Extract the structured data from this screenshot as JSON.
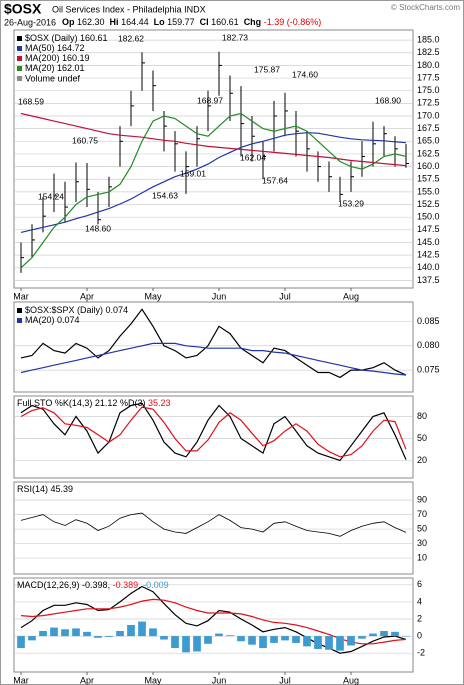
{
  "header": {
    "symbol": "$OSX",
    "name": "Oil Services Index - Philadelphia INDX",
    "date": "26-Aug-2016",
    "quote": [
      {
        "label": "Op",
        "value": "162.30"
      },
      {
        "label": "Hi",
        "value": "164.44"
      },
      {
        "label": "Lo",
        "value": "159.77"
      },
      {
        "label": "Cl",
        "value": "160.61"
      },
      {
        "label": "Chg",
        "value": "-1.39 (-0.86%)"
      }
    ],
    "watermark": "© StockCharts.com"
  },
  "chart_data": [
    {
      "type": "ohlc",
      "legend": "stack",
      "legend_note": "Volume undef",
      "categories": [
        "Mar",
        null,
        null,
        null,
        null,
        null,
        "Apr",
        null,
        null,
        null,
        null,
        null,
        "May",
        null,
        null,
        null,
        null,
        null,
        "Jun",
        null,
        null,
        null,
        null,
        null,
        "Jul",
        null,
        null,
        null,
        null,
        null,
        "Aug",
        null,
        null,
        null,
        null,
        null
      ],
      "ylim": [
        136,
        187
      ],
      "yticks": [
        137.5,
        {
          "value": 140,
          "label": "140.0"
        },
        142.5,
        {
          "value": 145,
          "label": "145.0"
        },
        147.5,
        {
          "value": 150,
          "label": "150.0"
        },
        152.5,
        {
          "value": 155,
          "label": "155.0"
        },
        157.5,
        {
          "value": 160,
          "label": "160.0"
        },
        162.5,
        {
          "value": 165,
          "label": "165.0"
        },
        167.5,
        {
          "value": 170,
          "label": "170.0"
        },
        172.5,
        {
          "value": 175,
          "label": "175.0"
        },
        177.5,
        {
          "value": 180,
          "label": "180.0"
        },
        182.5,
        {
          "value": 185,
          "label": "185.0"
        }
      ],
      "grid": true,
      "annotations": [
        "182.62",
        "182.73",
        "175.87",
        "174.60",
        "168.97",
        "168.90",
        "168.59",
        "160.75",
        "162.04",
        "159.01",
        "157.64",
        "154.24",
        "154.63",
        "153.29",
        "148.60"
      ],
      "series": [
        {
          "name": "$OSX (Daily)",
          "type": "ohlc",
          "color": "#000000",
          "high": [
            145,
            148.6,
            154,
            158.6,
            157,
            160.8,
            160.7,
            155,
            158,
            168,
            175,
            182.6,
            179,
            171,
            167,
            163,
            168,
            175,
            182.7,
            178,
            175.9,
            170,
            165,
            173,
            174.6,
            171,
            167,
            163,
            161,
            158,
            161,
            165,
            168.9,
            168,
            166,
            164.44
          ],
          "low": [
            139,
            142,
            147,
            151,
            149,
            153,
            152,
            148.6,
            152,
            160,
            168,
            175,
            171,
            163,
            159,
            154.6,
            160,
            167,
            174,
            169,
            162,
            161,
            157.6,
            163,
            166,
            162,
            159,
            157,
            155,
            153.3,
            155,
            158,
            160,
            162,
            160,
            159.77
          ],
          "values": [
            142,
            145.5,
            150.2,
            154.2,
            152,
            157,
            155.5,
            149.5,
            156,
            165,
            172,
            180.5,
            176,
            168,
            164.5,
            160,
            165.5,
            172,
            180,
            174.5,
            168.5,
            166,
            162,
            170,
            171,
            167,
            163.5,
            160,
            158,
            154.5,
            158,
            162,
            164.5,
            166.5,
            163.5,
            160.61
          ]
        },
        {
          "name": "MA(50)",
          "type": "line",
          "color": "#1f35a6",
          "values": [
            147,
            147.5,
            148,
            148.5,
            149,
            149.7,
            150.3,
            151,
            151.7,
            152.6,
            153.6,
            154.8,
            156,
            157,
            158,
            158.7,
            159.5,
            160.5,
            161.8,
            162.8,
            163.8,
            164.5,
            165,
            165.6,
            166.2,
            166.5,
            166.7,
            166.6,
            166.2,
            165.8,
            165.5,
            165.3,
            165.2,
            165.1,
            164.9,
            164.72
          ]
        },
        {
          "name": "MA(200)",
          "type": "line",
          "color": "#c0103a",
          "values": [
            170.5,
            170,
            169.5,
            169,
            168.5,
            168,
            167.5,
            167,
            166.5,
            166.2,
            166,
            165.8,
            165.5,
            165.2,
            165,
            164.6,
            164.3,
            164,
            163.8,
            163.6,
            163.4,
            163.2,
            163,
            162.8,
            162.6,
            162.4,
            162.2,
            162,
            161.8,
            161.5,
            161.2,
            161,
            160.8,
            160.6,
            160.4,
            160.19
          ]
        },
        {
          "name": "MA(20)",
          "type": "line",
          "color": "#228b22",
          "values": [
            140,
            142,
            145,
            148,
            150,
            152.5,
            154,
            154.5,
            155,
            156.5,
            160,
            165,
            169,
            170,
            169.5,
            168,
            166.5,
            166,
            168,
            170,
            170.5,
            169,
            167.5,
            167,
            167.5,
            168,
            167,
            165,
            163,
            161,
            160,
            159.5,
            160.5,
            162,
            162.5,
            162.01
          ]
        }
      ]
    },
    {
      "type": "line",
      "legend": "stack",
      "ylim": [
        0.0705,
        0.089
      ],
      "yticks": [
        0.075,
        {
          "value": 0.08,
          "label": "0.080"
        },
        0.085
      ],
      "grid": true,
      "series": [
        {
          "name": "$OSX:$SPX (Daily)",
          "type": "line",
          "color": "#000000",
          "values": [
            0.0775,
            0.078,
            0.0805,
            0.079,
            0.0785,
            0.0805,
            0.0795,
            0.0775,
            0.079,
            0.082,
            0.0845,
            0.0875,
            0.084,
            0.08,
            0.079,
            0.0775,
            0.078,
            0.08,
            0.084,
            0.0825,
            0.0795,
            0.078,
            0.0765,
            0.0795,
            0.079,
            0.0775,
            0.076,
            0.0745,
            0.0745,
            0.0735,
            0.075,
            0.075,
            0.0755,
            0.0765,
            0.075,
            0.074
          ]
        },
        {
          "name": "MA(20)",
          "type": "line",
          "color": "#1f35a6",
          "values": [
            0.0745,
            0.075,
            0.0755,
            0.076,
            0.0765,
            0.077,
            0.0775,
            0.078,
            0.0785,
            0.079,
            0.0795,
            0.08,
            0.0805,
            0.0805,
            0.0805,
            0.08,
            0.0798,
            0.0795,
            0.0795,
            0.0795,
            0.0795,
            0.079,
            0.079,
            0.0787,
            0.0785,
            0.078,
            0.0775,
            0.077,
            0.0765,
            0.076,
            0.0755,
            0.075,
            0.0748,
            0.0745,
            0.0742,
            0.074
          ]
        }
      ]
    },
    {
      "type": "line",
      "legend": "row",
      "title": "Full STO",
      "ylim": [
        -4,
        108
      ],
      "yticks": [
        80,
        50,
        20
      ],
      "grid": true,
      "series": [
        {
          "name": "%K(14,3)",
          "type": "line",
          "color": "#000000",
          "values": [
            85,
            95,
            90,
            70,
            55,
            80,
            60,
            30,
            45,
            85,
            95,
            98,
            75,
            45,
            30,
            25,
            45,
            75,
            95,
            80,
            50,
            40,
            30,
            70,
            80,
            60,
            40,
            30,
            25,
            20,
            40,
            60,
            80,
            85,
            55,
            21.12
          ]
        },
        {
          "name": "%D(3)",
          "type": "line",
          "color": "#e0101a",
          "values": [
            80,
            88,
            92,
            85,
            70,
            68,
            65,
            55,
            45,
            55,
            75,
            93,
            90,
            72,
            50,
            33,
            33,
            48,
            72,
            85,
            75,
            57,
            40,
            47,
            60,
            70,
            60,
            42,
            32,
            25,
            28,
            40,
            60,
            75,
            73,
            35.23
          ]
        }
      ]
    },
    {
      "type": "line",
      "legend": "row",
      "title": "RSI(14)",
      "ylim": [
        -12,
        115
      ],
      "yticks": [
        90,
        70,
        50,
        30,
        10
      ],
      "grid": true,
      "series": [
        {
          "type": "line",
          "color": "#000000",
          "values": [
            62,
            66,
            70,
            60,
            55,
            63,
            58,
            48,
            54,
            65,
            70,
            72,
            60,
            50,
            46,
            44,
            52,
            60,
            70,
            62,
            52,
            50,
            46,
            58,
            60,
            54,
            48,
            46,
            44,
            40,
            48,
            54,
            58,
            60,
            52,
            45.39
          ]
        }
      ]
    },
    {
      "type": "line",
      "legend": "row",
      "title": "MACD(12,26,9)",
      "ylim": [
        -4.2,
        6.8
      ],
      "yticks": [
        6,
        4,
        2,
        0,
        -2
      ],
      "grid": true,
      "categories": [
        "Mar",
        null,
        null,
        null,
        null,
        null,
        "Apr",
        null,
        null,
        null,
        null,
        null,
        "May",
        null,
        null,
        null,
        null,
        null,
        "Jun",
        null,
        null,
        null,
        null,
        null,
        "Jul",
        null,
        null,
        null,
        null,
        null,
        "Aug",
        null,
        null,
        null,
        null,
        null
      ],
      "series": [
        {
          "type": "line",
          "color": "#000000",
          "values": [
            1,
            1.8,
            3,
            3.6,
            3.6,
            3.9,
            3.7,
            3,
            3.1,
            4,
            5,
            5.8,
            5.2,
            3.8,
            2.5,
            1.5,
            1.2,
            1.8,
            3,
            2.8,
            2,
            1.3,
            0.5,
            0.8,
            1,
            0.5,
            -0.2,
            -0.9,
            -1.4,
            -2,
            -1.8,
            -1.2,
            -0.6,
            -0.1,
            0,
            -0.398
          ]
        },
        {
          "type": "line",
          "color": "#e0101a",
          "values": [
            2.4,
            2.3,
            2.4,
            2.6,
            2.8,
            3,
            3.2,
            3.2,
            3.2,
            3.4,
            3.7,
            4.1,
            4.3,
            4.2,
            3.9,
            3.4,
            3,
            2.7,
            2.7,
            2.7,
            2.6,
            2.3,
            1.9,
            1.6,
            1.5,
            1.3,
            1,
            0.6,
            0.2,
            -0.3,
            -0.7,
            -0.9,
            -0.9,
            -0.7,
            -0.5,
            -0.389
          ]
        },
        {
          "type": "bar",
          "color": "#3d9bd0",
          "values": [
            -1.4,
            -0.5,
            0.6,
            1,
            0.8,
            0.9,
            0.5,
            -0.2,
            -0.1,
            0.6,
            1.3,
            1.7,
            0.9,
            -0.4,
            -1.4,
            -1.9,
            -1.8,
            -0.9,
            0.3,
            0.1,
            -0.6,
            -1,
            -1.4,
            -0.8,
            -0.5,
            -0.8,
            -1.2,
            -1.5,
            -1.6,
            -1.7,
            -1.1,
            -0.3,
            0.3,
            0.6,
            0.5,
            -0.009
          ]
        }
      ]
    }
  ]
}
